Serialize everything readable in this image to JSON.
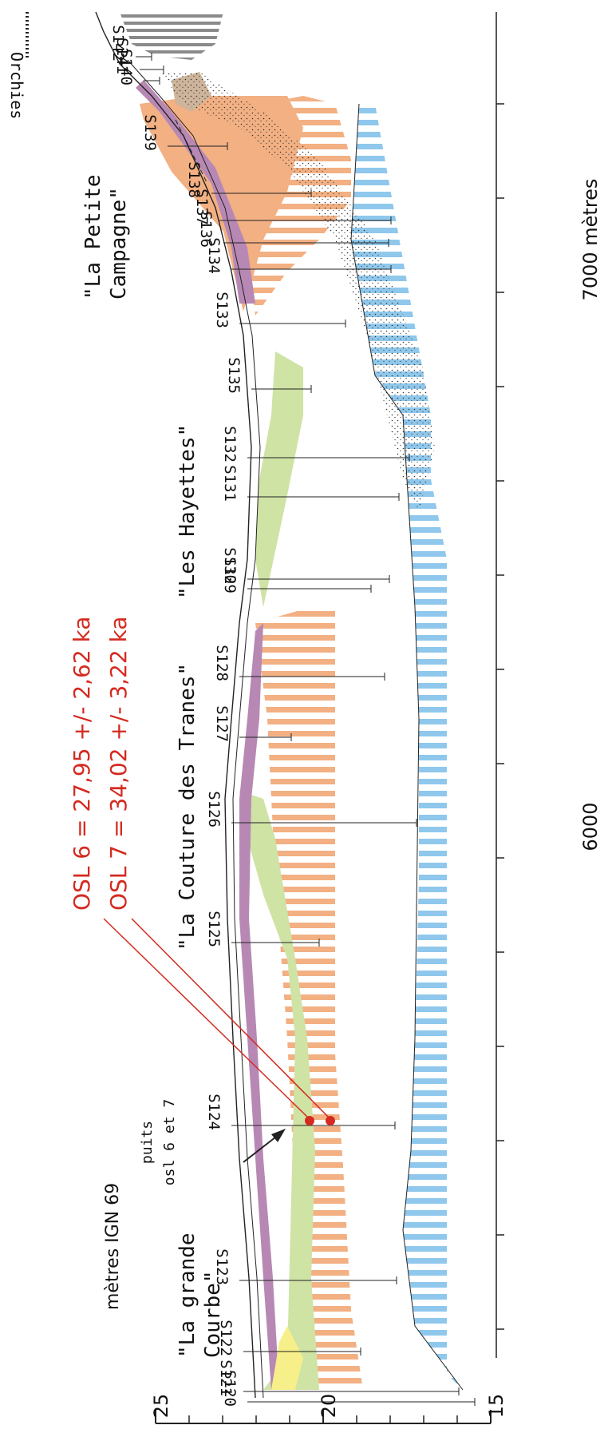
{
  "figure": {
    "y_axis_unit": "mètres IGN 69",
    "y_ticks": [
      "25",
      "20",
      "15"
    ],
    "x_ticks": [
      "6000",
      "7000 mètres"
    ],
    "legend_label": "Orchies",
    "osl_label_1": "OSL 6 = 27,95 +/- 2,62 ka",
    "osl_label_2": "OSL 7 = 34,02 +/- 3,22 ka",
    "well_label_line1": "puits",
    "well_label_line2": "osl 6 et 7",
    "localities": [
      {
        "line1": "\"La grande",
        "line2": "Courbe\""
      },
      {
        "line1": "\"La Couture des Tranes\"",
        "line2": ""
      },
      {
        "line1": "\"Les Hayettes\"",
        "line2": ""
      },
      {
        "line1": "\"La Petite",
        "line2": "Campagne\""
      }
    ],
    "soundings": [
      "S120",
      "S121",
      "S122",
      "S123",
      "S124",
      "S125",
      "S126",
      "S127",
      "S128",
      "S129",
      "S130",
      "S131",
      "S132",
      "S135",
      "S133",
      "S134",
      "S136",
      "S137",
      "S138",
      "S139",
      "S140",
      "S141",
      "S142"
    ],
    "colors": {
      "blue": "#8fc8ec",
      "orange": "#f2b083",
      "green": "#cfe3a4",
      "purple": "#b888b4",
      "yellow": "#f6ef8a",
      "tan": "#cdb49a",
      "osl_red": "#d42a20"
    }
  }
}
